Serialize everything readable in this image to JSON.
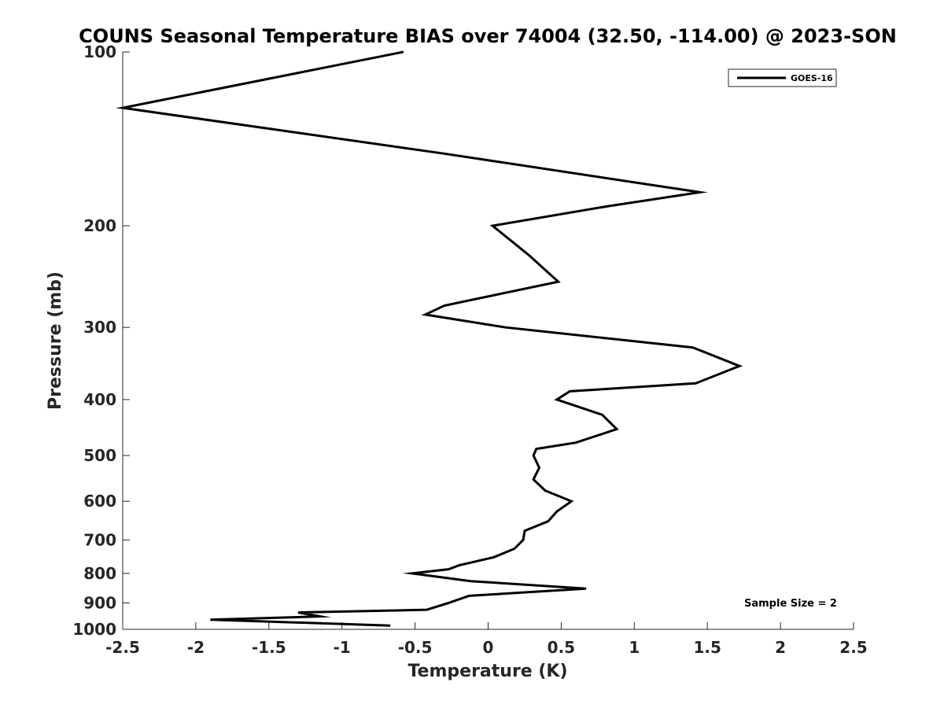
{
  "chart_data": {
    "type": "line",
    "title": "COUNS Seasonal Temperature BIAS over 74004 (32.50, -114.00) @ 2023-SON",
    "xlabel": "Temperature (K)",
    "ylabel": "Pressure (mb)",
    "xlim": [
      -2.5,
      2.5
    ],
    "ylim": [
      100,
      1000
    ],
    "yscale": "log",
    "y_reversed": true,
    "grid": false,
    "legend_position": "top-right",
    "xticks": [
      {
        "value": -2.5,
        "label": "-2.5"
      },
      {
        "value": -2,
        "label": "-2"
      },
      {
        "value": -1.5,
        "label": "-1.5"
      },
      {
        "value": -1,
        "label": "-1"
      },
      {
        "value": -0.5,
        "label": "-0.5"
      },
      {
        "value": 0,
        "label": "0"
      },
      {
        "value": 0.5,
        "label": "0.5"
      },
      {
        "value": 1,
        "label": "1"
      },
      {
        "value": 1.5,
        "label": "1.5"
      },
      {
        "value": 2,
        "label": "2"
      },
      {
        "value": 2.5,
        "label": "2.5"
      }
    ],
    "yticks": [
      {
        "value": 100,
        "label": "100"
      },
      {
        "value": 200,
        "label": "200"
      },
      {
        "value": 300,
        "label": "300"
      },
      {
        "value": 400,
        "label": "400"
      },
      {
        "value": 500,
        "label": "500"
      },
      {
        "value": 600,
        "label": "600"
      },
      {
        "value": 700,
        "label": "700"
      },
      {
        "value": 800,
        "label": "800"
      },
      {
        "value": 900,
        "label": "900"
      },
      {
        "value": 1000,
        "label": "1000"
      }
    ],
    "series": [
      {
        "name": "GOES-16",
        "color": "#000000",
        "points": [
          {
            "x": -0.58,
            "y": 100
          },
          {
            "x": -2.5,
            "y": 125
          },
          {
            "x": -0.3,
            "y": 150
          },
          {
            "x": 1.45,
            "y": 175
          },
          {
            "x": 0.82,
            "y": 185
          },
          {
            "x": 0.03,
            "y": 200
          },
          {
            "x": 0.28,
            "y": 225
          },
          {
            "x": 0.48,
            "y": 250
          },
          {
            "x": -0.3,
            "y": 275
          },
          {
            "x": -0.43,
            "y": 285
          },
          {
            "x": 0.12,
            "y": 300
          },
          {
            "x": 1.4,
            "y": 325
          },
          {
            "x": 1.72,
            "y": 350
          },
          {
            "x": 1.42,
            "y": 375
          },
          {
            "x": 0.56,
            "y": 387
          },
          {
            "x": 0.47,
            "y": 400
          },
          {
            "x": 0.78,
            "y": 425
          },
          {
            "x": 0.88,
            "y": 450
          },
          {
            "x": 0.6,
            "y": 475
          },
          {
            "x": 0.33,
            "y": 487
          },
          {
            "x": 0.31,
            "y": 500
          },
          {
            "x": 0.35,
            "y": 525
          },
          {
            "x": 0.31,
            "y": 550
          },
          {
            "x": 0.39,
            "y": 575
          },
          {
            "x": 0.57,
            "y": 600
          },
          {
            "x": 0.47,
            "y": 625
          },
          {
            "x": 0.41,
            "y": 650
          },
          {
            "x": 0.25,
            "y": 675
          },
          {
            "x": 0.24,
            "y": 700
          },
          {
            "x": 0.18,
            "y": 725
          },
          {
            "x": 0.04,
            "y": 750
          },
          {
            "x": -0.2,
            "y": 775
          },
          {
            "x": -0.27,
            "y": 787
          },
          {
            "x": -0.52,
            "y": 800
          },
          {
            "x": -0.12,
            "y": 825
          },
          {
            "x": 0.67,
            "y": 850
          },
          {
            "x": -0.13,
            "y": 875
          },
          {
            "x": -0.27,
            "y": 900
          },
          {
            "x": -0.42,
            "y": 925
          },
          {
            "x": -1.3,
            "y": 935
          },
          {
            "x": -1.15,
            "y": 950
          },
          {
            "x": -1.9,
            "y": 962
          },
          {
            "x": -0.67,
            "y": 985
          }
        ]
      }
    ],
    "annotation": "Sample Size = 2"
  }
}
